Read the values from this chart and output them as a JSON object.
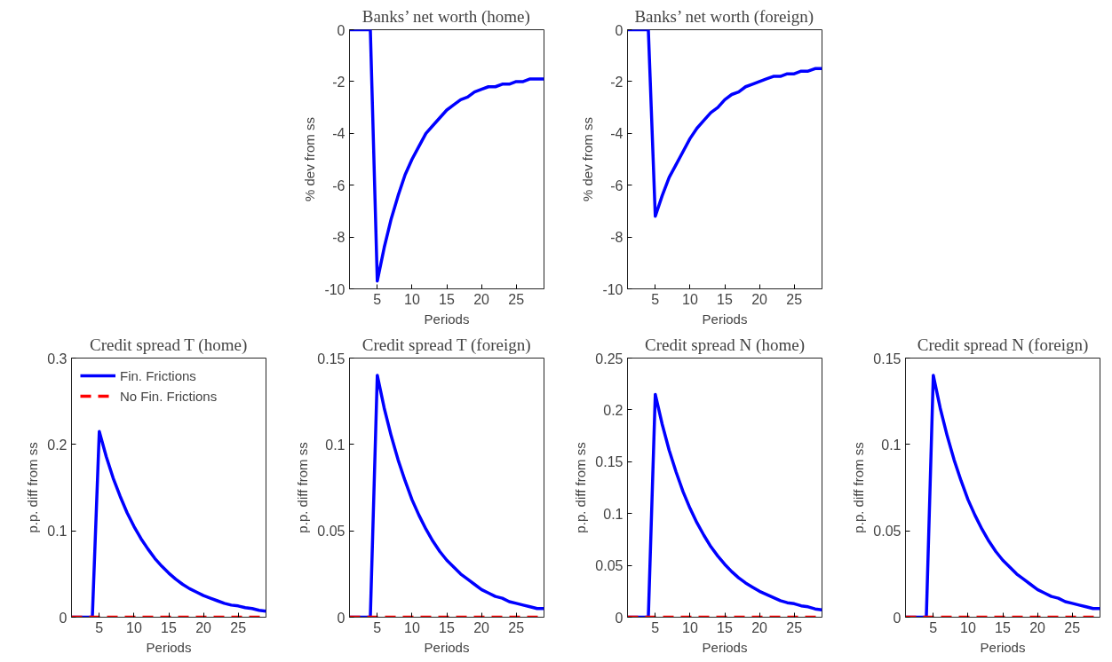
{
  "chart_data": [
    {
      "type": "line",
      "title": "Banks’ net worth (home)",
      "xlabel": "Periods",
      "ylabel": "% dev from ss",
      "x": [
        1,
        2,
        3,
        4,
        5,
        6,
        7,
        8,
        9,
        10,
        11,
        12,
        13,
        14,
        15,
        16,
        17,
        18,
        19,
        20,
        21,
        22,
        23,
        24,
        25,
        26,
        27,
        28,
        29
      ],
      "xlim": [
        1,
        29
      ],
      "ylim": [
        -10,
        0
      ],
      "xticks": [
        5,
        10,
        15,
        20,
        25
      ],
      "yticks": [
        -10,
        -8,
        -6,
        -4,
        -2,
        0
      ],
      "grid": false,
      "series": [
        {
          "color": "#0000ff",
          "line_style": "solid",
          "values": [
            0,
            0,
            0,
            0,
            -9.7,
            -8.4,
            -7.3,
            -6.4,
            -5.6,
            -5.0,
            -4.5,
            -4.0,
            -3.7,
            -3.4,
            -3.1,
            -2.9,
            -2.7,
            -2.6,
            -2.4,
            -2.3,
            -2.2,
            -2.2,
            -2.1,
            -2.1,
            -2.0,
            -2.0,
            -1.9,
            -1.9,
            -1.9
          ]
        }
      ]
    },
    {
      "type": "line",
      "title": "Banks’ net worth (foreign)",
      "xlabel": "Periods",
      "ylabel": "% dev from ss",
      "x": [
        1,
        2,
        3,
        4,
        5,
        6,
        7,
        8,
        9,
        10,
        11,
        12,
        13,
        14,
        15,
        16,
        17,
        18,
        19,
        20,
        21,
        22,
        23,
        24,
        25,
        26,
        27,
        28,
        29
      ],
      "xlim": [
        1,
        29
      ],
      "ylim": [
        -10,
        0
      ],
      "xticks": [
        5,
        10,
        15,
        20,
        25
      ],
      "yticks": [
        -10,
        -8,
        -6,
        -4,
        -2,
        0
      ],
      "grid": false,
      "series": [
        {
          "color": "#0000ff",
          "line_style": "solid",
          "values": [
            0,
            0,
            0,
            0,
            -7.2,
            -6.4,
            -5.7,
            -5.2,
            -4.7,
            -4.2,
            -3.8,
            -3.5,
            -3.2,
            -3.0,
            -2.7,
            -2.5,
            -2.4,
            -2.2,
            -2.1,
            -2.0,
            -1.9,
            -1.8,
            -1.8,
            -1.7,
            -1.7,
            -1.6,
            -1.6,
            -1.5,
            -1.5
          ]
        }
      ]
    },
    {
      "type": "line",
      "title": "Credit spread T (home)",
      "xlabel": "Periods",
      "ylabel": "p.p. diff from ss",
      "x": [
        1,
        2,
        3,
        4,
        5,
        6,
        7,
        8,
        9,
        10,
        11,
        12,
        13,
        14,
        15,
        16,
        17,
        18,
        19,
        20,
        21,
        22,
        23,
        24,
        25,
        26,
        27,
        28,
        29
      ],
      "xlim": [
        1,
        29
      ],
      "ylim": [
        0,
        0.3
      ],
      "xticks": [
        5,
        10,
        15,
        20,
        25
      ],
      "yticks": [
        0,
        0.1,
        0.2,
        0.3
      ],
      "grid": false,
      "legend": "top left",
      "series": [
        {
          "name": "Fin. Frictions",
          "color": "#0000ff",
          "line_style": "solid",
          "values": [
            0,
            0,
            0,
            0,
            0.215,
            0.186,
            0.161,
            0.14,
            0.121,
            0.105,
            0.091,
            0.079,
            0.068,
            0.059,
            0.051,
            0.044,
            0.038,
            0.033,
            0.029,
            0.025,
            0.022,
            0.019,
            0.016,
            0.014,
            0.013,
            0.011,
            0.01,
            0.008,
            0.007
          ]
        },
        {
          "name": "No Fin. Frictions",
          "color": "#ff0000",
          "line_style": "dashed",
          "values": [
            0,
            0,
            0,
            0,
            0,
            0,
            0,
            0,
            0,
            0,
            0,
            0,
            0,
            0,
            0,
            0,
            0,
            0,
            0,
            0,
            0,
            0,
            0,
            0,
            0,
            0,
            0,
            0,
            0
          ]
        }
      ]
    },
    {
      "type": "line",
      "title": "Credit spread T (foreign)",
      "xlabel": "Periods",
      "ylabel": "p.p. diff from ss",
      "x": [
        1,
        2,
        3,
        4,
        5,
        6,
        7,
        8,
        9,
        10,
        11,
        12,
        13,
        14,
        15,
        16,
        17,
        18,
        19,
        20,
        21,
        22,
        23,
        24,
        25,
        26,
        27,
        28,
        29
      ],
      "xlim": [
        1,
        29
      ],
      "ylim": [
        0,
        0.15
      ],
      "xticks": [
        5,
        10,
        15,
        20,
        25
      ],
      "yticks": [
        0,
        0.05,
        0.1,
        0.15
      ],
      "grid": false,
      "series": [
        {
          "color": "#0000ff",
          "line_style": "solid",
          "values": [
            0,
            0,
            0,
            0,
            0.14,
            0.121,
            0.105,
            0.091,
            0.079,
            0.068,
            0.059,
            0.051,
            0.044,
            0.038,
            0.033,
            0.029,
            0.025,
            0.022,
            0.019,
            0.016,
            0.014,
            0.012,
            0.011,
            0.009,
            0.008,
            0.007,
            0.006,
            0.005,
            0.005
          ]
        },
        {
          "color": "#ff0000",
          "line_style": "dashed",
          "values": [
            0,
            0,
            0,
            0,
            0,
            0,
            0,
            0,
            0,
            0,
            0,
            0,
            0,
            0,
            0,
            0,
            0,
            0,
            0,
            0,
            0,
            0,
            0,
            0,
            0,
            0,
            0,
            0,
            0
          ]
        }
      ]
    },
    {
      "type": "line",
      "title": "Credit spread N (home)",
      "xlabel": "Periods",
      "ylabel": "p.p. diff from ss",
      "x": [
        1,
        2,
        3,
        4,
        5,
        6,
        7,
        8,
        9,
        10,
        11,
        12,
        13,
        14,
        15,
        16,
        17,
        18,
        19,
        20,
        21,
        22,
        23,
        24,
        25,
        26,
        27,
        28,
        29
      ],
      "xlim": [
        1,
        29
      ],
      "ylim": [
        0,
        0.25
      ],
      "xticks": [
        5,
        10,
        15,
        20,
        25
      ],
      "yticks": [
        0,
        0.05,
        0.1,
        0.15,
        0.2,
        0.25
      ],
      "grid": false,
      "series": [
        {
          "color": "#0000ff",
          "line_style": "solid",
          "values": [
            0,
            0,
            0,
            0,
            0.215,
            0.186,
            0.161,
            0.14,
            0.121,
            0.105,
            0.091,
            0.079,
            0.068,
            0.059,
            0.051,
            0.044,
            0.038,
            0.033,
            0.029,
            0.025,
            0.022,
            0.019,
            0.016,
            0.014,
            0.013,
            0.011,
            0.01,
            0.008,
            0.007
          ]
        },
        {
          "color": "#ff0000",
          "line_style": "dashed",
          "values": [
            0,
            0,
            0,
            0,
            0,
            0,
            0,
            0,
            0,
            0,
            0,
            0,
            0,
            0,
            0,
            0,
            0,
            0,
            0,
            0,
            0,
            0,
            0,
            0,
            0,
            0,
            0,
            0,
            0
          ]
        }
      ]
    },
    {
      "type": "line",
      "title": "Credit spread N (foreign)",
      "xlabel": "Periods",
      "ylabel": "p.p. diff from ss",
      "x": [
        1,
        2,
        3,
        4,
        5,
        6,
        7,
        8,
        9,
        10,
        11,
        12,
        13,
        14,
        15,
        16,
        17,
        18,
        19,
        20,
        21,
        22,
        23,
        24,
        25,
        26,
        27,
        28,
        29
      ],
      "xlim": [
        1,
        29
      ],
      "ylim": [
        0,
        0.15
      ],
      "xticks": [
        5,
        10,
        15,
        20,
        25
      ],
      "yticks": [
        0,
        0.05,
        0.1,
        0.15
      ],
      "grid": false,
      "series": [
        {
          "color": "#0000ff",
          "line_style": "solid",
          "values": [
            0,
            0,
            0,
            0,
            0.14,
            0.121,
            0.105,
            0.091,
            0.079,
            0.068,
            0.059,
            0.051,
            0.044,
            0.038,
            0.033,
            0.029,
            0.025,
            0.022,
            0.019,
            0.016,
            0.014,
            0.012,
            0.011,
            0.009,
            0.008,
            0.007,
            0.006,
            0.005,
            0.005
          ]
        },
        {
          "color": "#ff0000",
          "line_style": "dashed",
          "values": [
            0,
            0,
            0,
            0,
            0,
            0,
            0,
            0,
            0,
            0,
            0,
            0,
            0,
            0,
            0,
            0,
            0,
            0,
            0,
            0,
            0,
            0,
            0,
            0,
            0,
            0,
            0,
            0,
            0
          ]
        }
      ]
    }
  ]
}
